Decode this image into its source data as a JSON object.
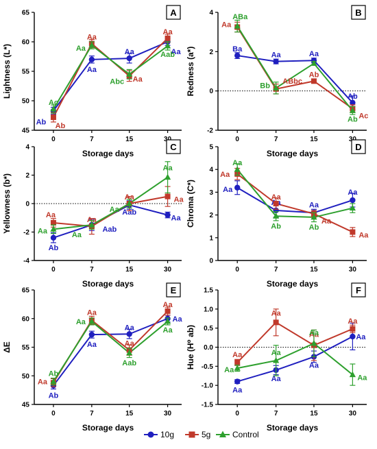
{
  "colors": {
    "s10g": "#1f1fbf",
    "s5g": "#c0392b",
    "control": "#2ea02e",
    "axis": "#000000"
  },
  "legend": {
    "items": [
      "10g",
      "5g",
      "Control"
    ]
  },
  "chart_data": [
    {
      "panel": "A",
      "type": "line",
      "ylabel": "Lightness (L*)",
      "xlabel": "Storage days",
      "categories": [
        "0",
        "7",
        "15",
        "30"
      ],
      "ylim": [
        45,
        65
      ],
      "yticks": [
        45,
        50,
        55,
        60,
        65
      ],
      "zero_line": false,
      "series": [
        {
          "name": "10g",
          "values": [
            48.3,
            57.0,
            57.2,
            60.0
          ],
          "err": [
            0.6,
            0.6,
            0.8,
            0.6
          ],
          "labels": [
            "Ab",
            "Aa",
            "Aa",
            "Aa"
          ]
        },
        {
          "name": "5g",
          "values": [
            47.2,
            59.7,
            54.2,
            60.6
          ],
          "err": [
            0.8,
            0.7,
            0.9,
            0.7
          ],
          "labels": [
            "Ab",
            "Aa",
            "Aa",
            "Aa"
          ]
        },
        {
          "name": "Control",
          "values": [
            48.6,
            59.4,
            54.5,
            59.3
          ],
          "err": [
            0.7,
            0.6,
            0.8,
            0.7
          ],
          "labels": [
            "Ac",
            "Aa",
            "Abc",
            "Aab"
          ]
        }
      ]
    },
    {
      "panel": "B",
      "type": "line",
      "ylabel": "Redness (a*)",
      "xlabel": "Storage days",
      "categories": [
        "0",
        "7",
        "15",
        "30"
      ],
      "ylim": [
        -2,
        4
      ],
      "yticks": [
        -2,
        0,
        2,
        4
      ],
      "zero_line": true,
      "series": [
        {
          "name": "10g",
          "values": [
            1.8,
            1.5,
            1.55,
            -0.6
          ],
          "err": [
            0.15,
            0.12,
            0.12,
            0.35
          ],
          "labels": [
            "Ba",
            "Aa",
            "Aa",
            "Ab"
          ]
        },
        {
          "name": "5g",
          "values": [
            3.25,
            0.1,
            0.5,
            -0.9
          ],
          "err": [
            0.25,
            0.25,
            0.1,
            0.2
          ],
          "labels": [
            "Aa",
            "ABbc",
            "Ab",
            "Ac"
          ]
        },
        {
          "name": "Control",
          "values": [
            3.3,
            0.15,
            1.4,
            -1.0
          ],
          "err": [
            0.3,
            0.3,
            0.1,
            0.2
          ],
          "labels": [
            "ABa",
            "Bb",
            "",
            "Ab"
          ]
        }
      ]
    },
    {
      "panel": "C",
      "type": "line",
      "ylabel": "Yellowness (b*)",
      "xlabel": "Storage days",
      "categories": [
        "0",
        "7",
        "15",
        "30"
      ],
      "ylim": [
        -4,
        4
      ],
      "yticks": [
        -4,
        -2,
        0,
        2,
        4
      ],
      "zero_line": true,
      "series": [
        {
          "name": "10g",
          "values": [
            -2.4,
            -1.5,
            -0.1,
            -0.8
          ],
          "err": [
            0.35,
            0.4,
            0.3,
            0.2
          ],
          "labels": [
            "Ab",
            "Aab",
            "Aab",
            "Aa"
          ]
        },
        {
          "name": "5g",
          "values": [
            -1.35,
            -1.6,
            0.0,
            0.5
          ],
          "err": [
            0.3,
            0.55,
            0.5,
            0.7
          ],
          "labels": [
            "Aa",
            "Aa",
            "Aa",
            "Aa"
          ]
        },
        {
          "name": "Control",
          "values": [
            -1.8,
            -1.5,
            0.0,
            1.85
          ],
          "err": [
            0.3,
            0.3,
            0.3,
            1.1
          ],
          "labels": [
            "Aa",
            "Aa",
            "Aa",
            "Aa"
          ]
        }
      ]
    },
    {
      "panel": "D",
      "type": "line",
      "ylabel": "Chroma (C*)",
      "xlabel": "Storage days",
      "categories": [
        "0",
        "7",
        "15",
        "30"
      ],
      "ylim": [
        0,
        5
      ],
      "yticks": [
        0,
        1,
        2,
        3,
        4,
        5
      ],
      "zero_line": false,
      "series": [
        {
          "name": "10g",
          "values": [
            3.2,
            2.2,
            2.1,
            2.65
          ],
          "err": [
            0.3,
            0.3,
            0.15,
            0.3
          ],
          "labels": [
            "Aa",
            "Aa",
            "Aa",
            "Aa"
          ]
        },
        {
          "name": "5g",
          "values": [
            3.8,
            2.5,
            2.05,
            1.25
          ],
          "err": [
            0.25,
            0.25,
            0.15,
            0.2
          ],
          "labels": [
            "Aa",
            "Aa",
            "Aa",
            "Aa"
          ]
        },
        {
          "name": "Control",
          "values": [
            4.0,
            1.95,
            1.9,
            2.3
          ],
          "err": [
            0.25,
            0.2,
            0.2,
            0.2
          ],
          "labels": [
            "Aa",
            "Ab",
            "Ab",
            ""
          ]
        }
      ]
    },
    {
      "panel": "E",
      "type": "line",
      "ylabel": "ΔE",
      "xlabel": "Storage days",
      "categories": [
        "0",
        "7",
        "15",
        "30"
      ],
      "ylim": [
        45,
        65
      ],
      "yticks": [
        45,
        50,
        55,
        60,
        65
      ],
      "zero_line": false,
      "series": [
        {
          "name": "10g",
          "values": [
            48.3,
            57.2,
            57.3,
            60.0
          ],
          "err": [
            0.6,
            0.6,
            0.8,
            0.6
          ],
          "labels": [
            "Ab",
            "Aa",
            "Aa",
            "Aa"
          ]
        },
        {
          "name": "5g",
          "values": [
            48.8,
            59.7,
            54.5,
            61.3
          ],
          "err": [
            0.7,
            0.7,
            0.9,
            0.7
          ],
          "labels": [
            "Aa",
            "Aa",
            "Aa",
            "Aa"
          ]
        },
        {
          "name": "Control",
          "values": [
            49.0,
            59.5,
            54.0,
            59.5
          ],
          "err": [
            0.6,
            0.6,
            0.8,
            0.6
          ],
          "labels": [
            "Ab",
            "Aa",
            "Aab",
            "Aa"
          ]
        }
      ]
    },
    {
      "panel": "F",
      "type": "line",
      "ylabel": "Hue (H⁰ ab)",
      "xlabel": "Storage days",
      "categories": [
        "0",
        "7",
        "15",
        "30"
      ],
      "ylim": [
        -1.5,
        1.5
      ],
      "yticks": [
        -1.5,
        -1.0,
        -0.5,
        0.0,
        0.5,
        1.0,
        1.5
      ],
      "zero_line": true,
      "series": [
        {
          "name": "10g",
          "values": [
            -0.9,
            -0.6,
            -0.25,
            0.28
          ],
          "err": [
            0.05,
            0.12,
            0.15,
            0.35
          ],
          "labels": [
            "Aa",
            "Aa",
            "Aa",
            "Aa"
          ]
        },
        {
          "name": "5g",
          "values": [
            -0.4,
            0.65,
            0.05,
            0.48
          ],
          "err": [
            0.08,
            0.35,
            0.4,
            0.1
          ],
          "labels": [
            "Aa",
            "Aa",
            "Aa",
            "Aa"
          ]
        },
        {
          "name": "Control",
          "values": [
            -0.55,
            -0.35,
            0.1,
            -0.72
          ],
          "err": [
            0.08,
            0.4,
            0.35,
            0.28
          ],
          "labels": [
            "Aa",
            "Aa",
            "Aa",
            "Aa"
          ]
        }
      ]
    }
  ]
}
